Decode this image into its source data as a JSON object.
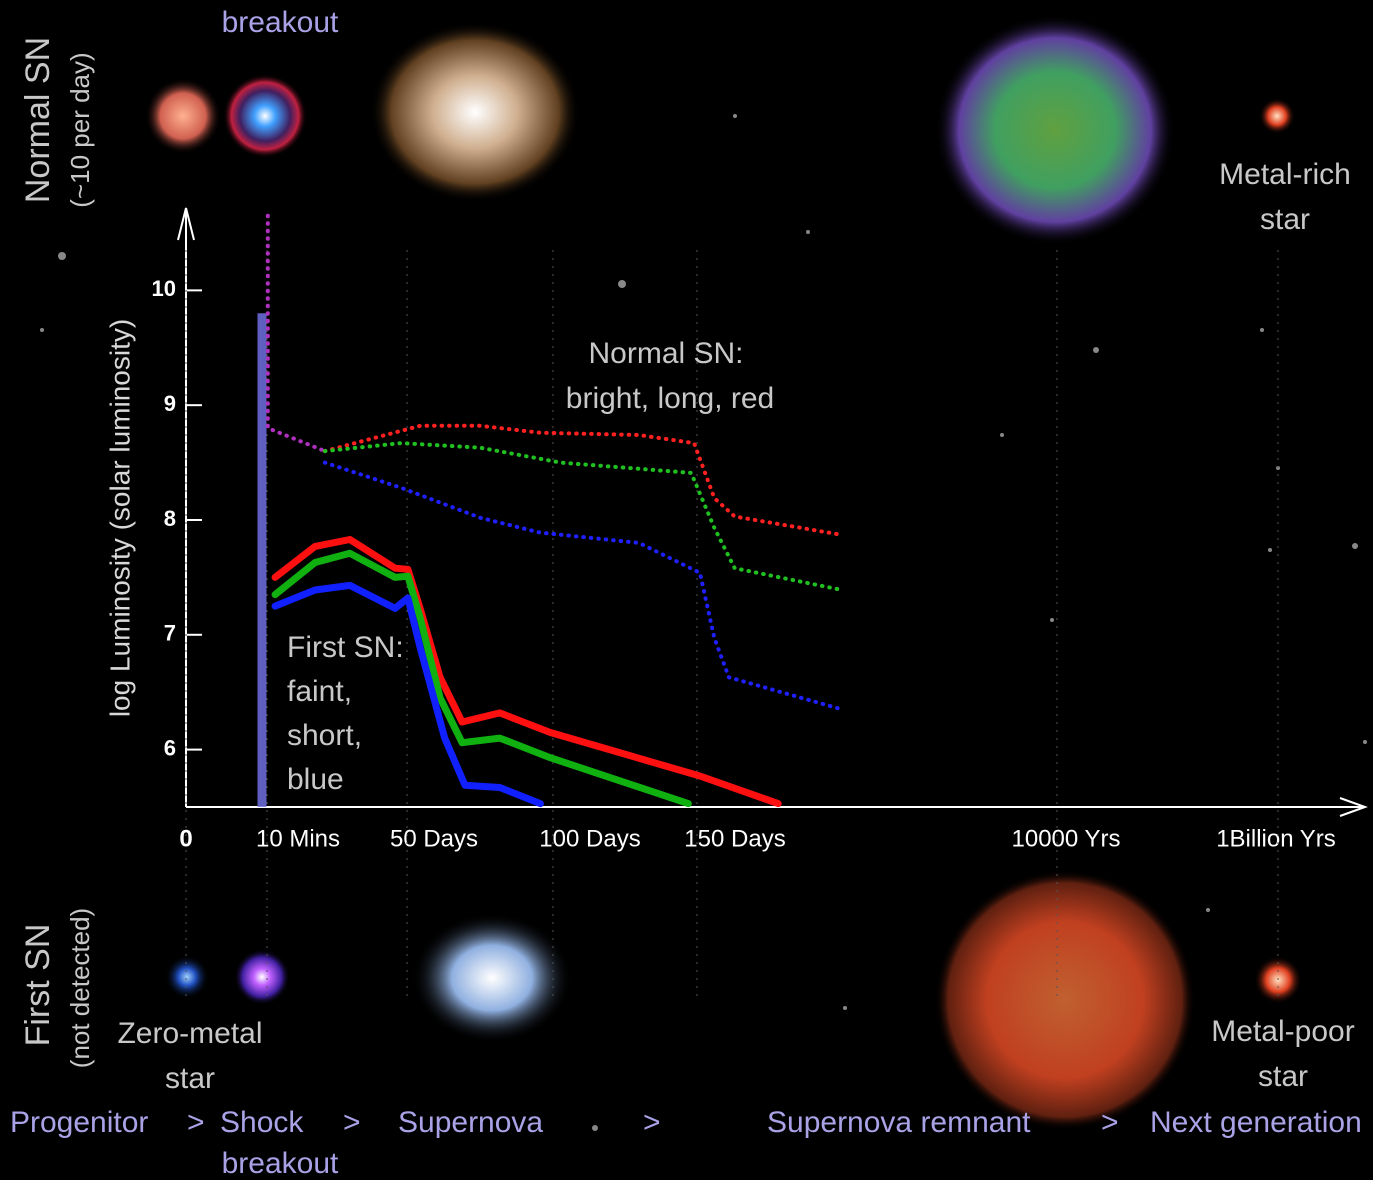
{
  "chart_data": {
    "type": "line",
    "ylabel": "log Luminosity (solar luminosity)",
    "ylim": [
      5.5,
      10.7
    ],
    "yticks": [
      6,
      7,
      8,
      9,
      10
    ],
    "xticks": [
      0,
      {
        "value": 0.0069,
        "label": "10 Mins"
      },
      {
        "value": 50,
        "label": "50 Days"
      },
      {
        "value": 100,
        "label": "100 Days"
      },
      {
        "value": 150,
        "label": "150 Days"
      },
      {
        "value": 3652500,
        "label": "10000 Yrs"
      },
      {
        "value": 365250000000,
        "label": "1Billion Yrs"
      }
    ],
    "series": [
      {
        "color": "#7070e0",
        "style": "band",
        "x": [
          0.0069,
          0.0069
        ],
        "values": [
          5.5,
          9.8
        ]
      },
      {
        "color": "#b030c0",
        "style": "dotted",
        "x": [
          2,
          2,
          21.7
        ],
        "values": [
          10.65,
          8.8,
          8.6
        ]
      },
      {
        "color": "#ff2020",
        "style": "dotted",
        "x": [
          21.7,
          54.5,
          75.2,
          95.9,
          130,
          149,
          156,
          163,
          200
        ],
        "values": [
          8.6,
          8.82,
          8.82,
          8.76,
          8.74,
          8.67,
          8.19,
          8.03,
          7.87
        ]
      },
      {
        "color": "#20c020",
        "style": "dotted",
        "x": [
          21.7,
          48,
          75.2,
          103,
          148,
          156,
          163,
          200
        ],
        "values": [
          8.6,
          8.67,
          8.63,
          8.5,
          8.41,
          7.93,
          7.58,
          7.39
        ]
      },
      {
        "color": "#2020ff",
        "style": "dotted",
        "x": [
          21.7,
          48,
          75.2,
          95.9,
          130,
          151,
          156,
          161,
          200
        ],
        "values": [
          8.5,
          8.28,
          8.02,
          7.89,
          7.8,
          7.54,
          6.97,
          6.63,
          6.35
        ]
      },
      {
        "color": "#ff1010",
        "style": "solid",
        "x": [
          4.5,
          18.3,
          30.3,
          45.9,
          50.3,
          54.5,
          61.4,
          69,
          82,
          99.3,
          151,
          178
        ],
        "values": [
          7.5,
          7.77,
          7.83,
          7.58,
          7.57,
          7.23,
          6.63,
          6.24,
          6.32,
          6.15,
          5.77,
          5.53
        ]
      },
      {
        "color": "#10b010",
        "style": "solid",
        "x": [
          4.5,
          18.3,
          30.3,
          45.9,
          50.3,
          54.5,
          61.4,
          69,
          82,
          99.3,
          147
        ],
        "values": [
          7.35,
          7.63,
          7.71,
          7.5,
          7.51,
          7.15,
          6.45,
          6.06,
          6.1,
          5.93,
          5.53
        ]
      },
      {
        "color": "#1020ff",
        "style": "solid",
        "x": [
          4.5,
          18.3,
          30.3,
          45.9,
          50.3,
          54.5,
          63,
          70,
          82,
          96
        ],
        "values": [
          7.25,
          7.39,
          7.43,
          7.23,
          7.32,
          6.89,
          6.1,
          5.69,
          5.67,
          5.53
        ]
      }
    ]
  },
  "annotations": {
    "normal": [
      "Normal SN:",
      "bright, long, red"
    ],
    "first": [
      "First SN:",
      "faint,",
      "short,",
      "blue"
    ]
  },
  "rows": {
    "normal": [
      "Normal SN",
      "(~10 per day)"
    ],
    "first": [
      "First SN",
      "(not detected)"
    ]
  },
  "objects": {
    "top_breakout": "breakout",
    "metal_rich": [
      "Metal-rich",
      "star"
    ],
    "zero_metal": [
      "Zero-metal",
      "star"
    ],
    "metal_poor": [
      "Metal-poor",
      "star"
    ]
  },
  "stages": [
    "Progenitor",
    ">",
    "Shock",
    ">",
    "Supernova",
    ">",
    "Supernova remnant",
    ">",
    "Next generation"
  ],
  "stage_sub": "breakout"
}
